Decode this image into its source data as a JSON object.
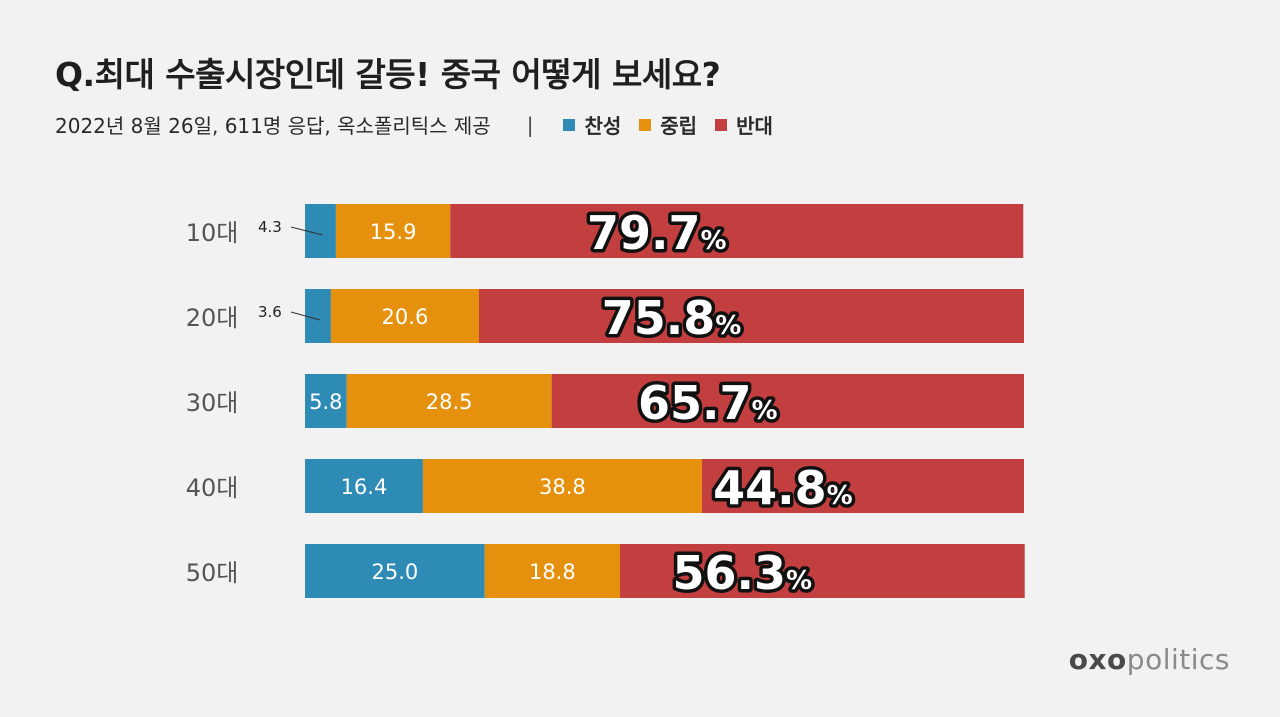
{
  "header": {
    "title": "Q.최대 수출시장인데 갈등! 중국 어떻게 보세요?",
    "subtitle": "2022년 8월 26일, 611명 응답, 옥소폴리틱스 제공",
    "separator": "|"
  },
  "legend": [
    {
      "label": "찬성",
      "color": "#2e8bb5"
    },
    {
      "label": "중립",
      "color": "#e5910e"
    },
    {
      "label": "반대",
      "color": "#c33f3f"
    }
  ],
  "brand": {
    "part1": "oxo",
    "part2": "politics"
  },
  "chart_data": {
    "type": "bar",
    "orientation": "horizontal",
    "stacked": true,
    "percent_suffix": "%",
    "categories": [
      "10대",
      "20대",
      "30대",
      "40대",
      "50대"
    ],
    "series": [
      {
        "name": "찬성",
        "color": "#2e8bb5",
        "values": [
          4.3,
          3.6,
          5.8,
          16.4,
          25.0
        ]
      },
      {
        "name": "중립",
        "color": "#e5910e",
        "values": [
          15.9,
          20.6,
          28.5,
          38.8,
          18.8
        ]
      },
      {
        "name": "반대",
        "color": "#c33f3f",
        "values": [
          79.7,
          75.8,
          65.7,
          44.8,
          56.3
        ]
      }
    ],
    "labels": {
      "찬성": [
        "4.3",
        "3.6",
        "5.8",
        "16.4",
        "25.0"
      ],
      "중립": [
        "15.9",
        "20.6",
        "28.5",
        "38.8",
        "18.8"
      ],
      "반대": [
        "79.7",
        "75.8",
        "65.7",
        "44.8",
        "56.3"
      ]
    },
    "xlim": [
      0,
      100
    ]
  }
}
